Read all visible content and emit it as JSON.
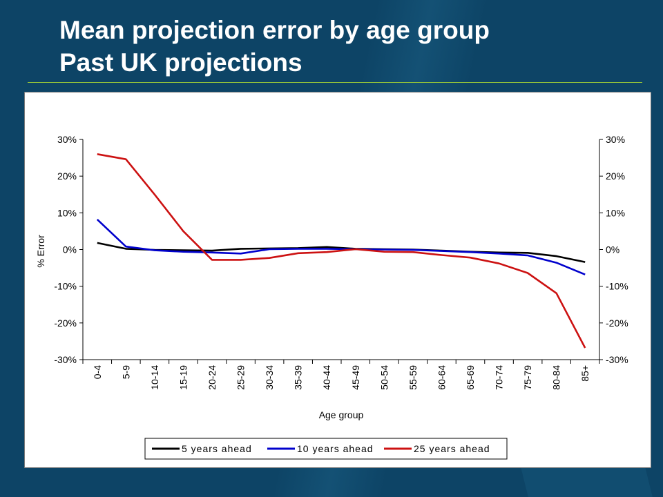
{
  "title_line1": "Mean projection error by age group",
  "title_line2": "Past UK projections",
  "chart_data": {
    "type": "line",
    "title": "",
    "xlabel": "Age group",
    "ylabel": "% Error",
    "ylim": [
      -30,
      30
    ],
    "ytick_labels": [
      "30%",
      "20%",
      "10%",
      "0%",
      "-10%",
      "-20%",
      "-30%"
    ],
    "yticks": [
      30,
      20,
      10,
      0,
      -10,
      -20,
      -30
    ],
    "secondary_y_axis": true,
    "categories": [
      "0-4",
      "5-9",
      "10-14",
      "15-19",
      "20-24",
      "25-29",
      "30-34",
      "35-39",
      "40-44",
      "45-49",
      "50-54",
      "55-59",
      "60-64",
      "65-69",
      "70-74",
      "75-79",
      "80-84",
      "85+"
    ],
    "legend_position": "bottom",
    "series": [
      {
        "name": "5 years ahead",
        "color": "#000000",
        "values": [
          1.8,
          0.2,
          -0.1,
          -0.2,
          -0.3,
          0.2,
          0.3,
          0.4,
          0.7,
          0.2,
          0.1,
          0.0,
          -0.3,
          -0.6,
          -0.8,
          -0.9,
          -1.8,
          -3.4
        ]
      },
      {
        "name": "10 years ahead",
        "color": "#0000cc",
        "values": [
          8.2,
          0.8,
          -0.2,
          -0.6,
          -0.8,
          -1.1,
          0.1,
          0.2,
          0.2,
          0.1,
          0.0,
          -0.1,
          -0.4,
          -0.7,
          -1.1,
          -1.6,
          -3.6,
          -6.8
        ]
      },
      {
        "name": "25 years ahead",
        "color": "#cc1111",
        "values": [
          26.0,
          24.6,
          15.0,
          5.0,
          -2.8,
          -2.8,
          -2.3,
          -1.0,
          -0.7,
          0.1,
          -0.6,
          -0.7,
          -1.5,
          -2.2,
          -3.8,
          -6.4,
          -11.9,
          -26.8
        ]
      }
    ]
  }
}
